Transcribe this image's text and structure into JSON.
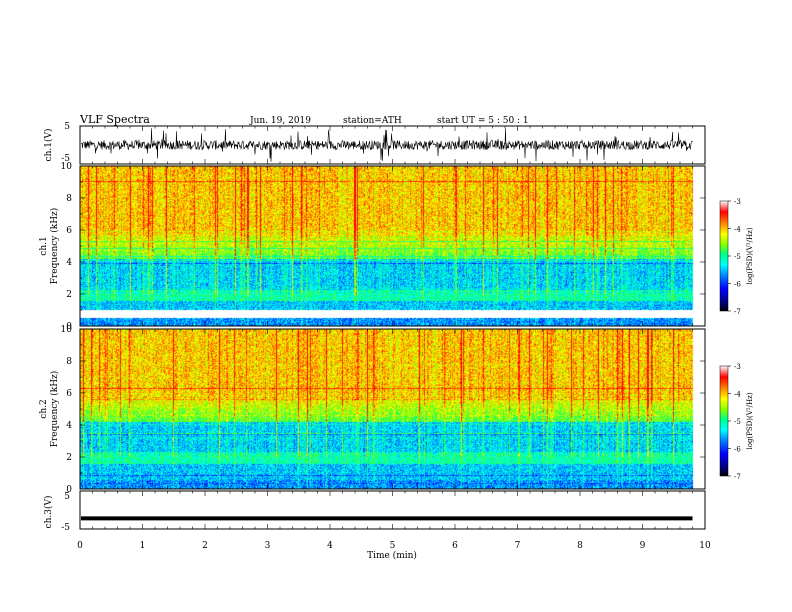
{
  "header": {
    "title": "VLF  Spectra",
    "date": "Jun. 19, 2019",
    "station": "station=ATH",
    "start_ut": "start  UT  =   5  : 50 : 1"
  },
  "chart_data": [
    {
      "type": "line",
      "name": "ch1-waveform",
      "ylabel": "ch.1(V)",
      "ylim": [
        -5,
        5
      ],
      "yticks": [
        "5",
        "-5"
      ],
      "xlim": [
        0,
        10
      ],
      "data_end_min": 9.8,
      "description_values": {
        "baseline_V": 0,
        "typical_amplitude_V": 2.5,
        "max_excursion_V": 4.5
      }
    },
    {
      "type": "heatmap",
      "name": "ch1-spectrogram",
      "ylabel": "ch.1\nFrequency  (kHz)",
      "ylabel_lines": [
        "ch.1",
        "Frequency  (kHz)"
      ],
      "ylim": [
        0,
        10
      ],
      "yticks": [
        "10",
        "8",
        "6",
        "4",
        "2",
        "0"
      ],
      "xlim": [
        0,
        10
      ],
      "data_end_min": 9.8,
      "gap_khz": [
        0.05,
        0.3
      ],
      "colorbar": {
        "label": "log(PSD)(V²/Hz)",
        "range": [
          -7,
          -3
        ],
        "ticks": [
          "-3",
          "-4",
          "-5",
          "-6",
          "-7"
        ]
      }
    },
    {
      "type": "heatmap",
      "name": "ch2-spectrogram",
      "ylabel": "ch.2\nFrequency  (kHz)",
      "ylabel_lines": [
        "ch.2",
        "Frequency  (kHz)"
      ],
      "ylim": [
        0,
        10
      ],
      "yticks": [
        "10",
        "8",
        "6",
        "4",
        "2",
        "0"
      ],
      "xlim": [
        0,
        10
      ],
      "data_end_min": 9.8,
      "colorbar": {
        "label": "log(PSD)(V²/Hz)",
        "range": [
          -7,
          -3
        ],
        "ticks": [
          "-3",
          "-4",
          "-5",
          "-6",
          "-7"
        ]
      }
    },
    {
      "type": "line",
      "name": "ch3-waveform",
      "ylabel": "ch.3(V)",
      "ylim": [
        -5,
        5
      ],
      "yticks": [
        "5",
        "-5"
      ],
      "xlim": [
        0,
        10
      ],
      "data_end_min": 9.8,
      "description_values": {
        "constant_V": -2.2
      }
    }
  ],
  "xaxis": {
    "label": "Time  (min)",
    "ticks": [
      "0",
      "1",
      "2",
      "3",
      "4",
      "5",
      "6",
      "7",
      "8",
      "9",
      "10"
    ]
  },
  "colormap": [
    "#000000",
    "#000080",
    "#0000ff",
    "#0080ff",
    "#00ffff",
    "#00ff80",
    "#80ff00",
    "#ffff00",
    "#ff8000",
    "#ff0000",
    "#ffffff"
  ]
}
